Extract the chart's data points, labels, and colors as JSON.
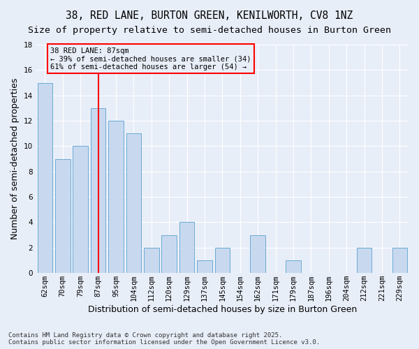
{
  "title": "38, RED LANE, BURTON GREEN, KENILWORTH, CV8 1NZ",
  "subtitle": "Size of property relative to semi-detached houses in Burton Green",
  "xlabel": "Distribution of semi-detached houses by size in Burton Green",
  "ylabel": "Number of semi-detached properties",
  "footnote": "Contains HM Land Registry data © Crown copyright and database right 2025.\nContains public sector information licensed under the Open Government Licence v3.0.",
  "categories": [
    "62sqm",
    "70sqm",
    "79sqm",
    "87sqm",
    "95sqm",
    "104sqm",
    "112sqm",
    "120sqm",
    "129sqm",
    "137sqm",
    "145sqm",
    "154sqm",
    "162sqm",
    "171sqm",
    "179sqm",
    "187sqm",
    "196sqm",
    "204sqm",
    "212sqm",
    "221sqm",
    "229sqm"
  ],
  "values": [
    15,
    9,
    10,
    13,
    12,
    11,
    2,
    3,
    4,
    1,
    2,
    0,
    3,
    0,
    1,
    0,
    0,
    0,
    2,
    0,
    2
  ],
  "bar_color": "#c8d9ef",
  "bar_edge_color": "#6aaad4",
  "highlight_bar_index": 3,
  "highlight_line_color": "red",
  "annotation_text": "38 RED LANE: 87sqm\n← 39% of semi-detached houses are smaller (34)\n61% of semi-detached houses are larger (54) →",
  "annotation_box_color": "red",
  "ylim": [
    0,
    18
  ],
  "yticks": [
    0,
    2,
    4,
    6,
    8,
    10,
    12,
    14,
    16,
    18
  ],
  "background_color": "#e8eef8",
  "grid_color": "#ffffff",
  "title_fontsize": 10.5,
  "subtitle_fontsize": 9.5,
  "label_fontsize": 9,
  "tick_fontsize": 7.5,
  "footnote_fontsize": 6.5,
  "annotation_fontsize": 7.5
}
